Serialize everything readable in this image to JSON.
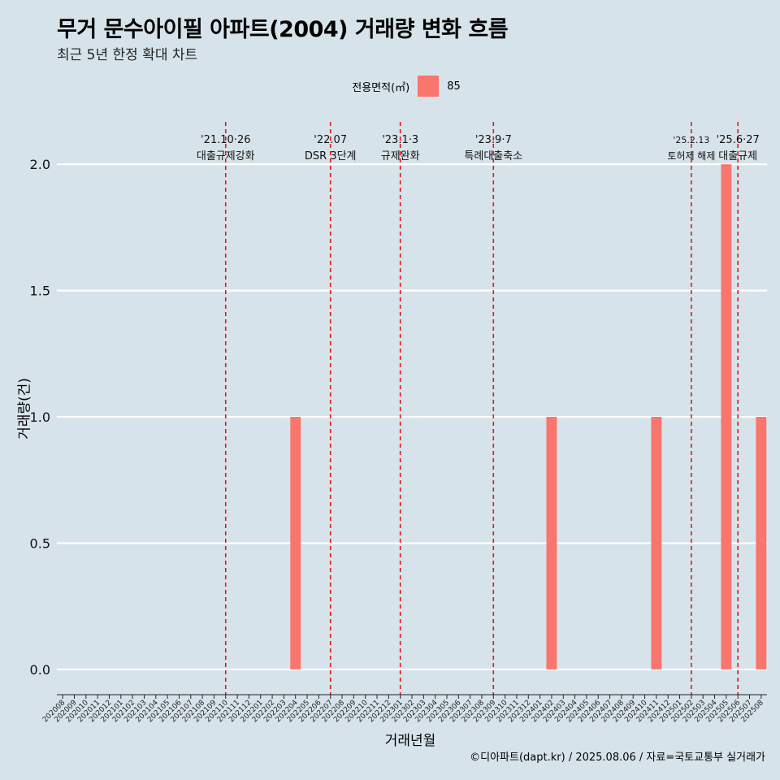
{
  "title": "무거 문수아이필 아파트(2004) 거래량 변화 흐름",
  "subtitle": "최근 5년 한정 확대 차트",
  "legend": {
    "title": "전용면적(㎡)",
    "label": "85",
    "color": "#f8766d"
  },
  "caption": "©디아파트(dapt.kr) / 2025.08.06 / 자료=국토교통부 실거래가",
  "chart_data": {
    "type": "bar",
    "xlabel": "거래년월",
    "ylabel": "거래량(건)",
    "ylim": [
      -0.1,
      2.2
    ],
    "yticks": [
      "0.0",
      "0.5",
      "1.0",
      "1.5",
      "2.0"
    ],
    "categories": [
      "202008",
      "202009",
      "202010",
      "202011",
      "202012",
      "202101",
      "202102",
      "202103",
      "202104",
      "202105",
      "202106",
      "202107",
      "202108",
      "202109",
      "202110",
      "202111",
      "202112",
      "202201",
      "202202",
      "202203",
      "202204",
      "202205",
      "202206",
      "202207",
      "202208",
      "202209",
      "202210",
      "202211",
      "202212",
      "202301",
      "202302",
      "202303",
      "202304",
      "202305",
      "202306",
      "202307",
      "202308",
      "202309",
      "202310",
      "202311",
      "202312",
      "202401",
      "202402",
      "202403",
      "202404",
      "202405",
      "202406",
      "202407",
      "202408",
      "202409",
      "202410",
      "202411",
      "202412",
      "202501",
      "202502",
      "202503",
      "202504",
      "202505",
      "202506",
      "202507",
      "202508"
    ],
    "series": [
      {
        "name": "85",
        "color": "#f8766d",
        "points": [
          {
            "x": "202204",
            "y": 1
          },
          {
            "x": "202402",
            "y": 1
          },
          {
            "x": "202411",
            "y": 1
          },
          {
            "x": "202505",
            "y": 2
          },
          {
            "x": "202508",
            "y": 1
          }
        ]
      }
    ],
    "grid": true,
    "legend_position": "top",
    "events": [
      {
        "x": "202110",
        "date": "'21.10·26",
        "label": "대출규제강화"
      },
      {
        "x": "202207",
        "date": "'22.07",
        "label": "DSR 3단계"
      },
      {
        "x": "202301",
        "date": "'23.1·3",
        "label": "규제완화"
      },
      {
        "x": "202309",
        "date": "'23.9·7",
        "label": "특례대출축소"
      },
      {
        "x": "202502",
        "date": "'25.2.13",
        "label": "토허제 해제",
        "small": true
      },
      {
        "x": "202506",
        "date": "'25.6·27",
        "label": "대출규제"
      }
    ]
  }
}
